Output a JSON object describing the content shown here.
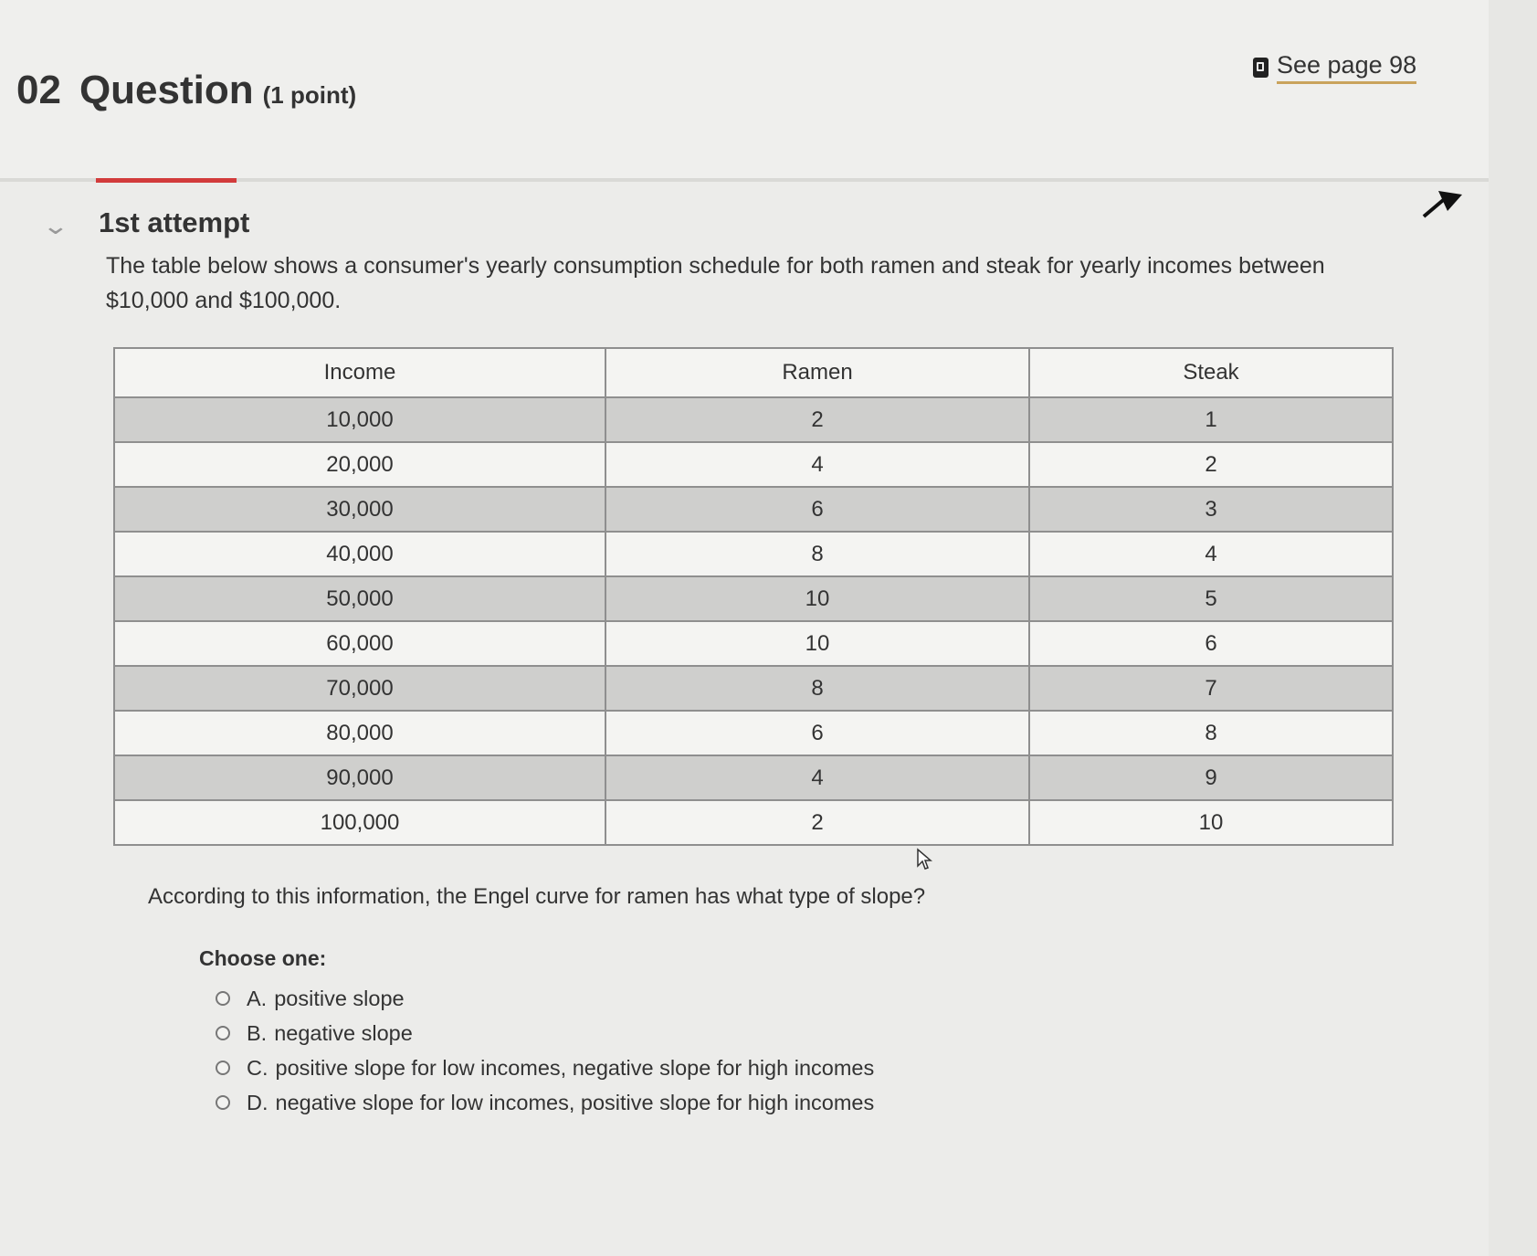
{
  "question": {
    "number": "02",
    "title": "Question",
    "points": "(1 point)",
    "see_page": "See page 98",
    "attempt": "1st attempt",
    "intro": "The table below shows a consumer's yearly consumption schedule for both ramen and steak for yearly incomes between $10,000 and $100,000.",
    "prompt": "According to this information, the Engel curve for ramen has what type of slope?",
    "choose_label": "Choose one:"
  },
  "table": {
    "headers": [
      "Income",
      "Ramen",
      "Steak"
    ],
    "rows": [
      [
        "10,000",
        "2",
        "1"
      ],
      [
        "20,000",
        "4",
        "2"
      ],
      [
        "30,000",
        "6",
        "3"
      ],
      [
        "40,000",
        "8",
        "4"
      ],
      [
        "50,000",
        "10",
        "5"
      ],
      [
        "60,000",
        "10",
        "6"
      ],
      [
        "70,000",
        "8",
        "7"
      ],
      [
        "80,000",
        "6",
        "8"
      ],
      [
        "90,000",
        "4",
        "9"
      ],
      [
        "100,000",
        "2",
        "10"
      ]
    ]
  },
  "options": [
    {
      "letter": "A.",
      "text": "positive slope"
    },
    {
      "letter": "B.",
      "text": "negative slope"
    },
    {
      "letter": "C.",
      "text": "positive slope for low incomes, negative slope for high incomes"
    },
    {
      "letter": "D.",
      "text": "negative slope for low incomes, positive slope for high incomes"
    }
  ],
  "icons": {
    "book": "book-icon",
    "chevron": "chevron-down-icon",
    "arrow": "arrow-up-right-icon",
    "cursor": "mouse-cursor-icon"
  },
  "colors": {
    "accent_red": "#d23b3b",
    "link_underline": "#c9a35c",
    "row_shaded": "#cfcfcd",
    "row_light": "#f4f4f2"
  }
}
